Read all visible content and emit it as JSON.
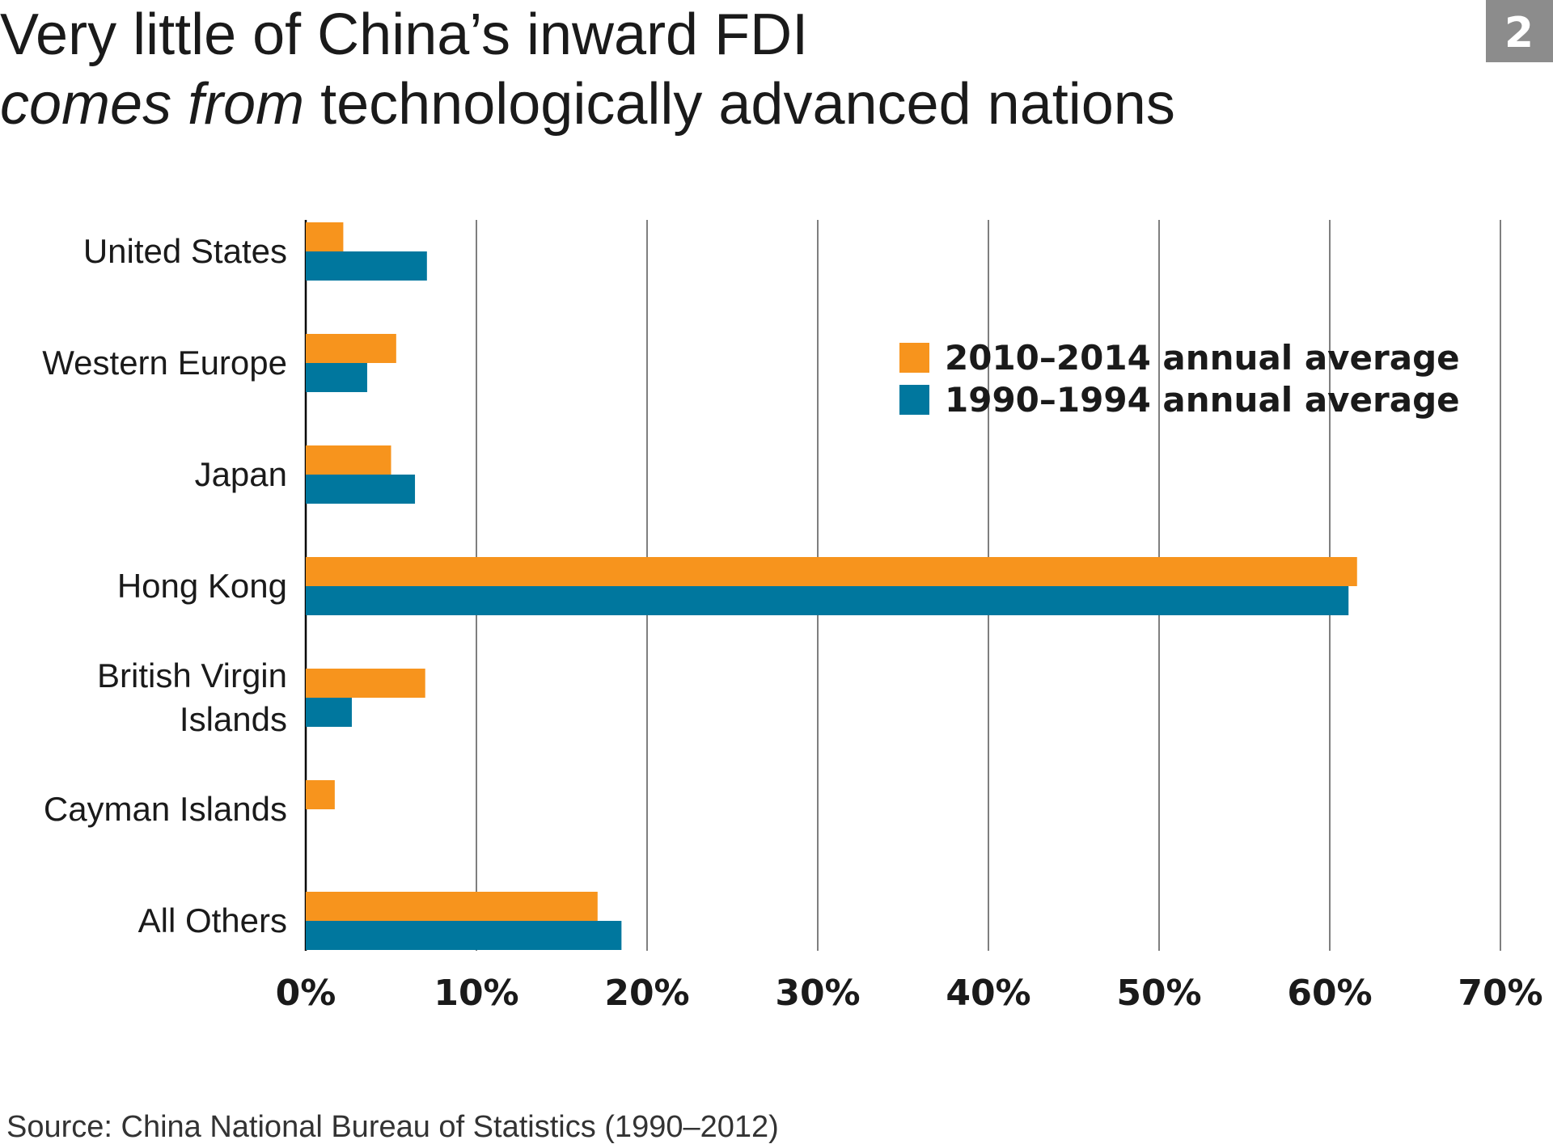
{
  "badge": "2",
  "chart_data": {
    "type": "hbar",
    "title_line1": "Very little of China’s inward FDI",
    "title_line2_italic": "comes from",
    "title_line2_rest": "technologically advanced nations",
    "categories": [
      "United States",
      "Western Europe",
      "Japan",
      "Hong Kong",
      "British Virgin Islands",
      "Cayman Islands",
      "All Others"
    ],
    "series": [
      {
        "name": "2010–2014 annual average",
        "color": "#f7941d",
        "values": [
          2.2,
          5.3,
          5.0,
          61.6,
          7.0,
          1.7,
          17.1
        ]
      },
      {
        "name": "1990–1994 annual average",
        "color": "#00779e",
        "values": [
          7.1,
          3.6,
          6.4,
          61.1,
          2.7,
          null,
          18.5
        ]
      }
    ],
    "xlim": [
      0,
      70
    ],
    "xticks": [
      {
        "value": 0,
        "label": "0%"
      },
      {
        "value": 10,
        "label": "10%"
      },
      {
        "value": 20,
        "label": "20%"
      },
      {
        "value": 30,
        "label": "30%"
      },
      {
        "value": 40,
        "label": "40%"
      },
      {
        "value": 50,
        "label": "50%"
      },
      {
        "value": 60,
        "label": "60%"
      },
      {
        "value": 70,
        "label": "70%"
      }
    ],
    "grid": true,
    "source": "Source: China National Bureau of Statistics (1990–2012)"
  }
}
